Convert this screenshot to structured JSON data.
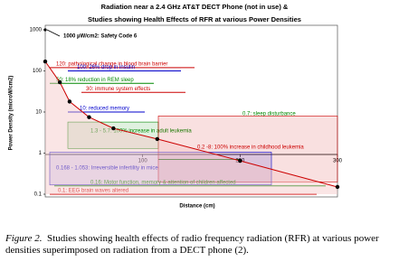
{
  "chart_data": {
    "type": "line",
    "title": [
      "Radiation near a 2.4 GHz AT&T DECT Phone (not in use) &",
      "Studies showing Health Effects of RFR at various Power Densities"
    ],
    "xlabel": "Distance (cm)",
    "ylabel": "Power Density (microW/cm2)",
    "x": [
      0,
      15,
      25,
      45,
      70,
      115,
      200,
      300
    ],
    "series": [
      {
        "name": "DECT phone",
        "color": "#cc0000",
        "values": [
          170,
          53,
          18,
          7.5,
          4,
          2.2,
          0.65,
          0.15
        ]
      }
    ],
    "xlim": [
      0,
      300
    ],
    "xticks": [
      100,
      200,
      300
    ],
    "ylim": [
      0.1,
      1000
    ],
    "yticks": [
      0.1,
      1,
      10,
      100,
      1000
    ],
    "log_y": true,
    "safety_code": {
      "value": 1000,
      "text": "1000 µW/cm2:  Safety Code 6"
    },
    "annotations": [
      {
        "value": 120,
        "text": "120:  pathological change in blood brain barrier",
        "color": "#cc0000"
      },
      {
        "value": 100,
        "text": "100:  26% drop in insulin",
        "color": "#0000cc"
      },
      {
        "value": 50,
        "text": "50:  18% reduction in REM sleep",
        "color": "#008800"
      },
      {
        "value": 30,
        "text": "30:  immune system effects",
        "color": "#cc0000"
      },
      {
        "value": 10,
        "text": "10:  reduced memory",
        "color": "#0000cc"
      },
      {
        "value": 0.7,
        "text": "0.7:  sleep disturbance",
        "color": "#008800"
      },
      {
        "range": [
          1.3,
          5.7
        ],
        "text": "1.3 - 5.7:  100% increase in adult leukemia",
        "color": "#008800"
      },
      {
        "range": [
          0.2,
          8
        ],
        "text": "0.2  -8:  100% increase in childhood leukemia",
        "color": "#cc0000"
      },
      {
        "range": [
          0.168,
          1.053
        ],
        "text": "0.168 - 1.053:  Irreversible infertility in mice",
        "color": "#0000cc"
      },
      {
        "value": 0.16,
        "text": "0.16:  Motor function, memory & attention of children affected",
        "color": "#008800"
      },
      {
        "value": 0.1,
        "text": "0.1:  EEG brain waves altered",
        "color": "#cc0000"
      }
    ]
  },
  "caption": {
    "label": "Figure 2.",
    "text": "Studies showing health effects of radio frequency radiation (RFR) at various power densities superimposed on radiation from a DECT phone (2)."
  }
}
